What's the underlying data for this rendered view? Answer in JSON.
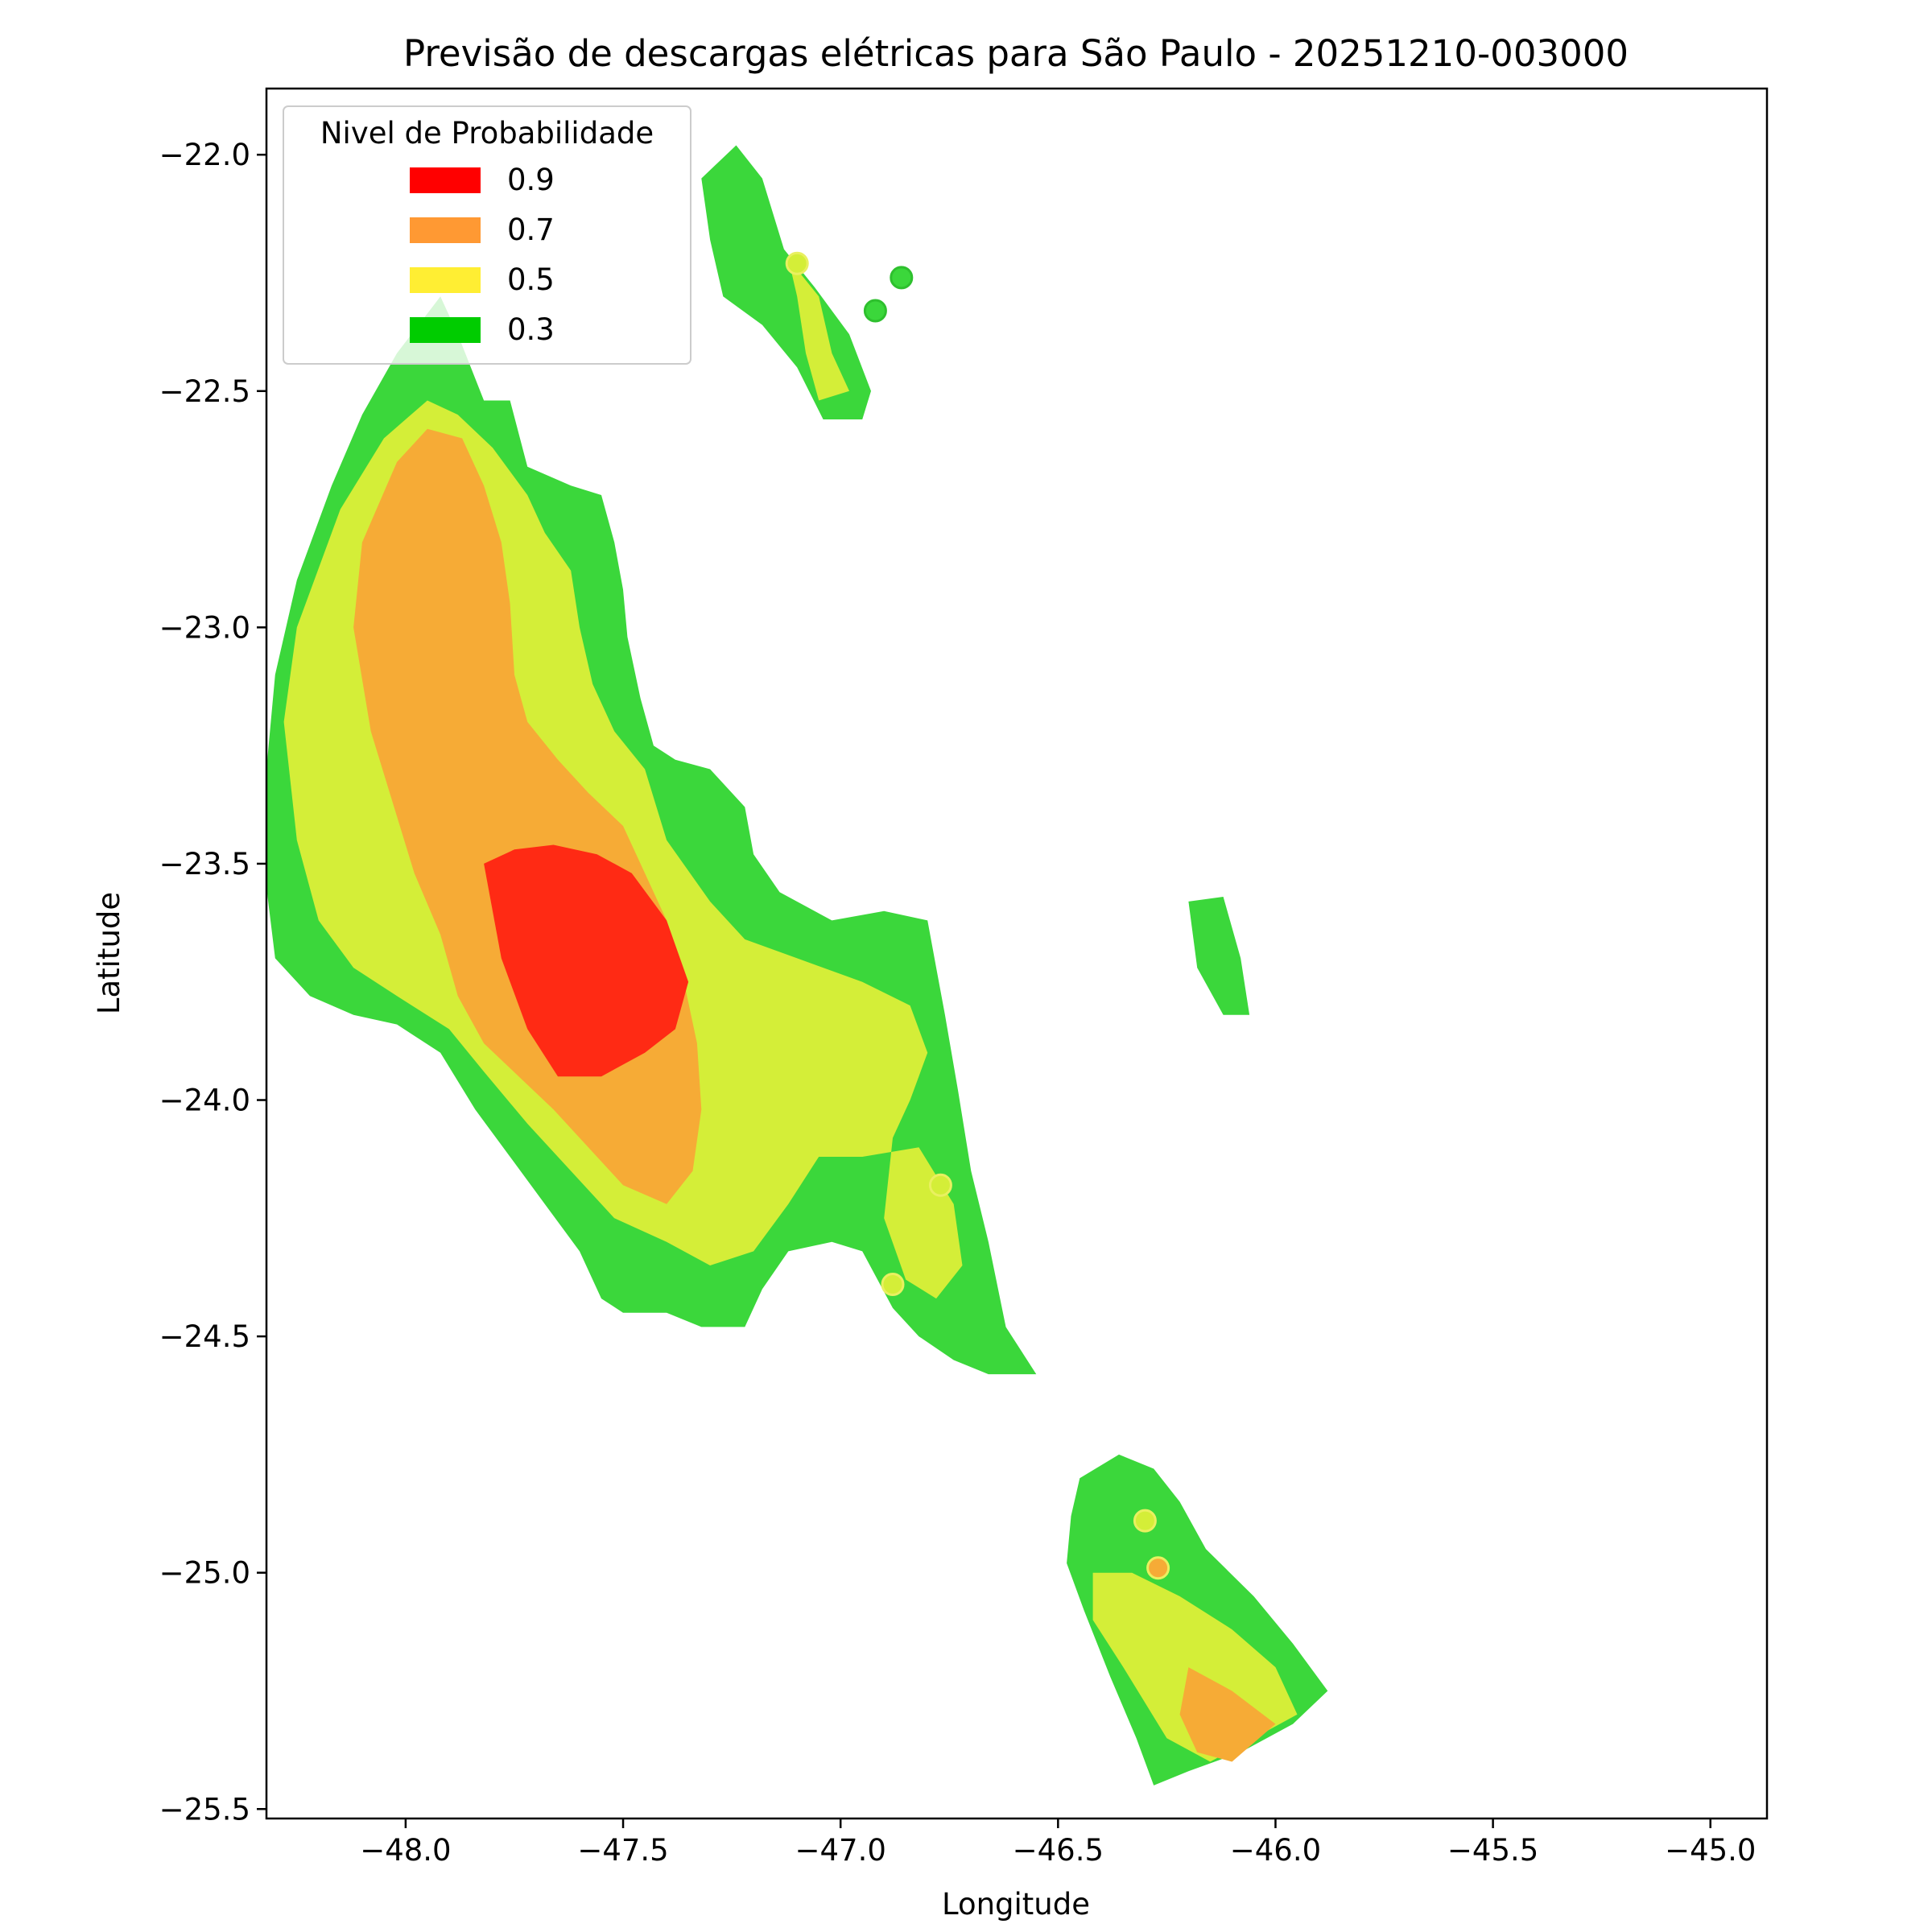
{
  "chart_data": {
    "type": "heatmap",
    "title": "Previsão de descargas elétricas para São Paulo - 20251210-003000",
    "xlabel": "Longitude",
    "ylabel": "Latitude",
    "xlim": [
      -48.32,
      -44.87
    ],
    "ylim": [
      -25.52,
      -21.86
    ],
    "xticks": [
      -48.0,
      -47.5,
      -47.0,
      -46.5,
      -46.0,
      -45.5,
      -45.0
    ],
    "yticks": [
      -22.0,
      -22.5,
      -23.0,
      -23.5,
      -24.0,
      -24.5,
      -25.0,
      -25.5
    ],
    "xtick_labels": [
      "−48.0",
      "−47.5",
      "−47.0",
      "−46.5",
      "−46.0",
      "−45.5",
      "−45.0"
    ],
    "ytick_labels": [
      "−22.0",
      "−22.5",
      "−23.0",
      "−23.5",
      "−24.0",
      "−24.5",
      "−25.0",
      "−25.5"
    ],
    "grid": false,
    "legend": {
      "title": "Nivel de Probabilidade",
      "placement": "top-left",
      "entries": [
        {
          "label": "0.9",
          "color": "#ff0000"
        },
        {
          "label": "0.7",
          "color": "#ff9933"
        },
        {
          "label": "0.5",
          "color": "#ffee33"
        },
        {
          "label": "0.3",
          "color": "#00cc00"
        }
      ]
    },
    "level_colors": {
      "0.3": "#3bd73b",
      "0.5": "#d4ee38",
      "0.7": "#f6ab36",
      "0.9": "#ff2a14"
    },
    "regions": [
      {
        "level": "0.3",
        "polygon": [
          [
            -48.32,
            -23.3
          ],
          [
            -48.3,
            -23.1
          ],
          [
            -48.25,
            -22.9
          ],
          [
            -48.17,
            -22.7
          ],
          [
            -48.1,
            -22.55
          ],
          [
            -48.02,
            -22.42
          ],
          [
            -47.92,
            -22.3
          ],
          [
            -47.88,
            -22.38
          ],
          [
            -47.82,
            -22.52
          ],
          [
            -47.76,
            -22.52
          ],
          [
            -47.72,
            -22.66
          ],
          [
            -47.62,
            -22.7
          ],
          [
            -47.55,
            -22.72
          ],
          [
            -47.52,
            -22.82
          ],
          [
            -47.5,
            -22.92
          ],
          [
            -47.49,
            -23.02
          ],
          [
            -47.46,
            -23.15
          ],
          [
            -47.43,
            -23.25
          ],
          [
            -47.38,
            -23.28
          ],
          [
            -47.3,
            -23.3
          ],
          [
            -47.22,
            -23.38
          ],
          [
            -47.2,
            -23.48
          ],
          [
            -47.14,
            -23.56
          ],
          [
            -47.02,
            -23.62
          ],
          [
            -46.9,
            -23.6
          ],
          [
            -46.8,
            -23.62
          ],
          [
            -46.78,
            -23.72
          ],
          [
            -46.76,
            -23.82
          ],
          [
            -46.73,
            -23.98
          ],
          [
            -46.7,
            -24.15
          ],
          [
            -46.66,
            -24.3
          ],
          [
            -46.62,
            -24.48
          ],
          [
            -46.55,
            -24.58
          ],
          [
            -46.66,
            -24.58
          ],
          [
            -46.74,
            -24.55
          ],
          [
            -46.82,
            -24.5
          ],
          [
            -46.88,
            -24.44
          ],
          [
            -46.95,
            -24.32
          ],
          [
            -47.02,
            -24.3
          ],
          [
            -47.12,
            -24.32
          ],
          [
            -47.18,
            -24.4
          ],
          [
            -47.22,
            -24.48
          ],
          [
            -47.32,
            -24.48
          ],
          [
            -47.4,
            -24.45
          ],
          [
            -47.5,
            -24.45
          ],
          [
            -47.55,
            -24.42
          ],
          [
            -47.6,
            -24.32
          ],
          [
            -47.68,
            -24.22
          ],
          [
            -47.76,
            -24.12
          ],
          [
            -47.84,
            -24.02
          ],
          [
            -47.92,
            -23.9
          ],
          [
            -48.02,
            -23.84
          ],
          [
            -48.12,
            -23.82
          ],
          [
            -48.22,
            -23.78
          ],
          [
            -48.3,
            -23.7
          ],
          [
            -48.32,
            -23.55
          ]
        ]
      },
      {
        "level": "0.3",
        "polygon": [
          [
            -47.32,
            -22.05
          ],
          [
            -47.24,
            -21.98
          ],
          [
            -47.18,
            -22.05
          ],
          [
            -47.13,
            -22.2
          ],
          [
            -47.06,
            -22.28
          ],
          [
            -46.98,
            -22.38
          ],
          [
            -46.93,
            -22.5
          ],
          [
            -46.95,
            -22.56
          ],
          [
            -47.04,
            -22.56
          ],
          [
            -47.1,
            -22.45
          ],
          [
            -47.18,
            -22.36
          ],
          [
            -47.27,
            -22.3
          ],
          [
            -47.3,
            -22.18
          ]
        ]
      },
      {
        "level": "0.3",
        "polygon": [
          [
            -46.2,
            -23.58
          ],
          [
            -46.12,
            -23.57
          ],
          [
            -46.08,
            -23.7
          ],
          [
            -46.06,
            -23.82
          ],
          [
            -46.12,
            -23.82
          ],
          [
            -46.18,
            -23.72
          ]
        ]
      },
      {
        "level": "0.3",
        "polygon": [
          [
            -46.45,
            -24.8
          ],
          [
            -46.36,
            -24.75
          ],
          [
            -46.28,
            -24.78
          ],
          [
            -46.22,
            -24.85
          ],
          [
            -46.16,
            -24.95
          ],
          [
            -46.05,
            -25.05
          ],
          [
            -45.96,
            -25.15
          ],
          [
            -45.88,
            -25.25
          ],
          [
            -45.96,
            -25.32
          ],
          [
            -46.08,
            -25.38
          ],
          [
            -46.2,
            -25.42
          ],
          [
            -46.28,
            -25.45
          ],
          [
            -46.32,
            -25.35
          ],
          [
            -46.38,
            -25.22
          ],
          [
            -46.44,
            -25.08
          ],
          [
            -46.48,
            -24.98
          ],
          [
            -46.47,
            -24.88
          ]
        ]
      },
      {
        "level": "0.5",
        "polygon": [
          [
            -48.28,
            -23.2
          ],
          [
            -48.25,
            -23.0
          ],
          [
            -48.15,
            -22.75
          ],
          [
            -48.05,
            -22.6
          ],
          [
            -47.95,
            -22.52
          ],
          [
            -47.88,
            -22.55
          ],
          [
            -47.8,
            -22.62
          ],
          [
            -47.72,
            -22.72
          ],
          [
            -47.68,
            -22.8
          ],
          [
            -47.62,
            -22.88
          ],
          [
            -47.6,
            -23.0
          ],
          [
            -47.57,
            -23.12
          ],
          [
            -47.52,
            -23.22
          ],
          [
            -47.45,
            -23.3
          ],
          [
            -47.4,
            -23.45
          ],
          [
            -47.3,
            -23.58
          ],
          [
            -47.22,
            -23.66
          ],
          [
            -47.1,
            -23.7
          ],
          [
            -46.95,
            -23.75
          ],
          [
            -46.84,
            -23.8
          ],
          [
            -46.8,
            -23.9
          ],
          [
            -46.84,
            -24.0
          ],
          [
            -46.88,
            -24.08
          ],
          [
            -46.9,
            -24.25
          ],
          [
            -46.85,
            -24.38
          ],
          [
            -46.78,
            -24.42
          ],
          [
            -46.72,
            -24.35
          ],
          [
            -46.74,
            -24.22
          ],
          [
            -46.82,
            -24.1
          ],
          [
            -46.95,
            -24.12
          ],
          [
            -47.05,
            -24.12
          ],
          [
            -47.12,
            -24.22
          ],
          [
            -47.2,
            -24.32
          ],
          [
            -47.3,
            -24.35
          ],
          [
            -47.4,
            -24.3
          ],
          [
            -47.52,
            -24.25
          ],
          [
            -47.62,
            -24.15
          ],
          [
            -47.72,
            -24.05
          ],
          [
            -47.82,
            -23.94
          ],
          [
            -47.9,
            -23.85
          ],
          [
            -48.02,
            -23.78
          ],
          [
            -48.12,
            -23.72
          ],
          [
            -48.2,
            -23.62
          ],
          [
            -48.25,
            -23.45
          ]
        ]
      },
      {
        "level": "0.5",
        "polygon": [
          [
            -47.12,
            -22.22
          ],
          [
            -47.05,
            -22.3
          ],
          [
            -47.02,
            -22.42
          ],
          [
            -46.98,
            -22.5
          ],
          [
            -47.05,
            -22.52
          ],
          [
            -47.08,
            -22.42
          ],
          [
            -47.1,
            -22.3
          ]
        ]
      },
      {
        "level": "0.5",
        "polygon": [
          [
            -46.42,
            -25.0
          ],
          [
            -46.33,
            -25.0
          ],
          [
            -46.22,
            -25.05
          ],
          [
            -46.1,
            -25.12
          ],
          [
            -46.0,
            -25.2
          ],
          [
            -45.95,
            -25.3
          ],
          [
            -46.05,
            -25.35
          ],
          [
            -46.15,
            -25.4
          ],
          [
            -46.25,
            -25.35
          ],
          [
            -46.35,
            -25.2
          ],
          [
            -46.42,
            -25.1
          ]
        ]
      },
      {
        "level": "0.7",
        "polygon": [
          [
            -48.12,
            -23.0
          ],
          [
            -48.1,
            -22.82
          ],
          [
            -48.02,
            -22.65
          ],
          [
            -47.95,
            -22.58
          ],
          [
            -47.87,
            -22.6
          ],
          [
            -47.82,
            -22.7
          ],
          [
            -47.78,
            -22.82
          ],
          [
            -47.76,
            -22.95
          ],
          [
            -47.75,
            -23.1
          ],
          [
            -47.72,
            -23.2
          ],
          [
            -47.65,
            -23.28
          ],
          [
            -47.58,
            -23.35
          ],
          [
            -47.5,
            -23.42
          ],
          [
            -47.45,
            -23.52
          ],
          [
            -47.4,
            -23.62
          ],
          [
            -47.36,
            -23.75
          ],
          [
            -47.33,
            -23.88
          ],
          [
            -47.32,
            -24.02
          ],
          [
            -47.34,
            -24.15
          ],
          [
            -47.4,
            -24.22
          ],
          [
            -47.5,
            -24.18
          ],
          [
            -47.58,
            -24.1
          ],
          [
            -47.66,
            -24.02
          ],
          [
            -47.74,
            -23.95
          ],
          [
            -47.82,
            -23.88
          ],
          [
            -47.88,
            -23.78
          ],
          [
            -47.92,
            -23.65
          ],
          [
            -47.98,
            -23.52
          ],
          [
            -48.02,
            -23.4
          ],
          [
            -48.08,
            -23.22
          ]
        ]
      },
      {
        "level": "0.7",
        "polygon": [
          [
            -46.2,
            -25.2
          ],
          [
            -46.1,
            -25.25
          ],
          [
            -46.0,
            -25.32
          ],
          [
            -46.1,
            -25.4
          ],
          [
            -46.18,
            -25.38
          ],
          [
            -46.22,
            -25.3
          ]
        ]
      },
      {
        "level": "0.9",
        "polygon": [
          [
            -47.82,
            -23.5
          ],
          [
            -47.78,
            -23.7
          ],
          [
            -47.72,
            -23.85
          ],
          [
            -47.65,
            -23.95
          ],
          [
            -47.55,
            -23.95
          ],
          [
            -47.45,
            -23.9
          ],
          [
            -47.38,
            -23.85
          ],
          [
            -47.35,
            -23.75
          ],
          [
            -47.4,
            -23.62
          ],
          [
            -47.48,
            -23.52
          ],
          [
            -47.56,
            -23.48
          ],
          [
            -47.66,
            -23.46
          ],
          [
            -47.75,
            -23.47
          ]
        ]
      }
    ],
    "points": [
      {
        "lon": -47.1,
        "lat": -22.23,
        "level": "0.5"
      },
      {
        "lon": -46.92,
        "lat": -22.33,
        "level": "0.3"
      },
      {
        "lon": -46.86,
        "lat": -22.26,
        "level": "0.3"
      },
      {
        "lon": -46.77,
        "lat": -24.18,
        "level": "0.5"
      },
      {
        "lon": -46.88,
        "lat": -24.39,
        "level": "0.5"
      },
      {
        "lon": -46.3,
        "lat": -24.89,
        "level": "0.5"
      },
      {
        "lon": -46.27,
        "lat": -24.99,
        "level": "0.7"
      }
    ]
  }
}
